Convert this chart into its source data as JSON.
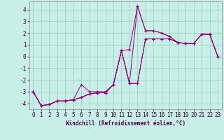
{
  "xlabel": "Windchill (Refroidissement éolien,°C)",
  "bg_color": "#c8eee8",
  "grid_color": "#9dccc4",
  "line_color": "#990077",
  "x_hours": [
    0,
    1,
    2,
    3,
    4,
    5,
    6,
    7,
    8,
    9,
    10,
    11,
    12,
    13,
    14,
    15,
    16,
    17,
    18,
    19,
    20,
    21,
    22,
    23
  ],
  "series": [
    [
      -3.0,
      -4.2,
      -4.1,
      -3.8,
      -3.8,
      -3.7,
      -3.5,
      -3.2,
      -3.1,
      -3.1,
      -2.4,
      0.5,
      0.6,
      4.3,
      2.2,
      2.2,
      2.0,
      1.7,
      1.2,
      1.1,
      1.1,
      1.9,
      1.9,
      0.0
    ],
    [
      -3.0,
      -4.2,
      -4.1,
      -3.8,
      -3.8,
      -3.7,
      -2.4,
      -3.0,
      -3.0,
      -3.0,
      -2.4,
      0.5,
      -2.3,
      -2.3,
      1.5,
      1.5,
      1.5,
      1.5,
      1.2,
      1.1,
      1.1,
      1.9,
      1.9,
      0.0
    ],
    [
      -3.0,
      -4.2,
      -4.1,
      -3.8,
      -3.8,
      -3.7,
      -3.5,
      -3.2,
      -3.1,
      -3.1,
      -2.4,
      0.5,
      -2.3,
      -2.3,
      1.5,
      1.5,
      1.5,
      1.5,
      1.2,
      1.1,
      1.1,
      1.9,
      1.9,
      0.0
    ],
    [
      -3.0,
      -4.2,
      -4.1,
      -3.8,
      -3.8,
      -3.7,
      -3.5,
      -3.2,
      -3.1,
      -3.1,
      -2.4,
      0.5,
      -2.3,
      4.3,
      2.2,
      2.2,
      2.0,
      1.7,
      1.2,
      1.1,
      1.1,
      1.9,
      1.9,
      0.0
    ]
  ],
  "ylim": [
    -4.5,
    4.7
  ],
  "yticks": [
    -4,
    -3,
    -2,
    -1,
    0,
    1,
    2,
    3,
    4
  ],
  "xticks": [
    0,
    1,
    2,
    3,
    4,
    5,
    6,
    7,
    8,
    9,
    10,
    11,
    12,
    13,
    14,
    15,
    16,
    17,
    18,
    19,
    20,
    21,
    22,
    23
  ],
  "tick_fontsize": 5.5,
  "xlabel_fontsize": 5.5
}
